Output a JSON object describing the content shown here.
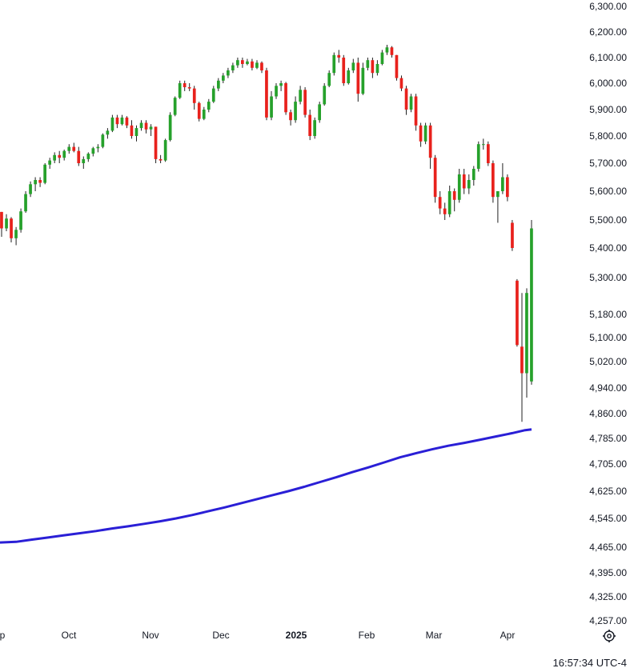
{
  "chart_data": {
    "type": "candlestick",
    "y_axis": {
      "ticks": [
        "6,300.00",
        "6,200.00",
        "6,100.00",
        "6,000.00",
        "5,900.00",
        "5,800.00",
        "5,700.00",
        "5,600.00",
        "5,500.00",
        "5,400.00",
        "5,300.00",
        "5,180.00",
        "5,100.00",
        "5,020.00",
        "4,940.00",
        "4,860.00",
        "4,785.00",
        "4,705.00",
        "4,625.00",
        "4,545.00",
        "4,465.00",
        "4,395.00",
        "4,325.00",
        "4,257.00"
      ],
      "ylim": [
        4257,
        6300
      ]
    },
    "x_axis": {
      "labels": [
        {
          "text": "p",
          "bold": false
        },
        {
          "text": "Oct",
          "bold": false
        },
        {
          "text": "Nov",
          "bold": false
        },
        {
          "text": "Dec",
          "bold": false
        },
        {
          "text": "2025",
          "bold": true
        },
        {
          "text": "Feb",
          "bold": false
        },
        {
          "text": "Mar",
          "bold": false
        },
        {
          "text": "Apr",
          "bold": false
        }
      ]
    },
    "colors": {
      "up": "#26a12b",
      "down": "#e8211c",
      "ma": "#2a1fd6",
      "wick": "#222222"
    },
    "candles": [
      [
        5528,
        5528,
        5440,
        5470
      ],
      [
        5470,
        5520,
        5460,
        5505
      ],
      [
        5505,
        5510,
        5420,
        5435
      ],
      [
        5435,
        5475,
        5410,
        5465
      ],
      [
        5465,
        5540,
        5455,
        5530
      ],
      [
        5530,
        5600,
        5525,
        5590
      ],
      [
        5590,
        5635,
        5580,
        5625
      ],
      [
        5625,
        5650,
        5600,
        5640
      ],
      [
        5640,
        5650,
        5615,
        5630
      ],
      [
        5630,
        5700,
        5625,
        5695
      ],
      [
        5695,
        5720,
        5680,
        5710
      ],
      [
        5710,
        5740,
        5700,
        5730
      ],
      [
        5730,
        5745,
        5700,
        5720
      ],
      [
        5720,
        5750,
        5710,
        5745
      ],
      [
        5745,
        5770,
        5735,
        5760
      ],
      [
        5760,
        5775,
        5740,
        5745
      ],
      [
        5745,
        5760,
        5690,
        5700
      ],
      [
        5700,
        5725,
        5680,
        5715
      ],
      [
        5715,
        5740,
        5705,
        5735
      ],
      [
        5735,
        5760,
        5725,
        5755
      ],
      [
        5755,
        5770,
        5740,
        5760
      ],
      [
        5760,
        5810,
        5755,
        5805
      ],
      [
        5805,
        5830,
        5790,
        5820
      ],
      [
        5820,
        5880,
        5815,
        5870
      ],
      [
        5870,
        5880,
        5830,
        5845
      ],
      [
        5845,
        5880,
        5840,
        5870
      ],
      [
        5870,
        5875,
        5830,
        5840
      ],
      [
        5840,
        5860,
        5790,
        5800
      ],
      [
        5800,
        5840,
        5780,
        5830
      ],
      [
        5830,
        5860,
        5820,
        5850
      ],
      [
        5850,
        5860,
        5810,
        5825
      ],
      [
        5825,
        5845,
        5800,
        5835
      ],
      [
        5835,
        5835,
        5700,
        5715
      ],
      [
        5715,
        5730,
        5700,
        5710
      ],
      [
        5710,
        5790,
        5705,
        5785
      ],
      [
        5785,
        5890,
        5780,
        5880
      ],
      [
        5880,
        5950,
        5875,
        5945
      ],
      [
        5945,
        6010,
        5940,
        6000
      ],
      [
        6000,
        6010,
        5970,
        5985
      ],
      [
        5985,
        6000,
        5970,
        5980
      ],
      [
        5980,
        5990,
        5900,
        5925
      ],
      [
        5925,
        5930,
        5855,
        5865
      ],
      [
        5865,
        5910,
        5860,
        5900
      ],
      [
        5900,
        5940,
        5890,
        5930
      ],
      [
        5930,
        5990,
        5925,
        5980
      ],
      [
        5980,
        6020,
        5970,
        6010
      ],
      [
        6010,
        6040,
        6000,
        6030
      ],
      [
        6030,
        6060,
        6020,
        6050
      ],
      [
        6050,
        6080,
        6040,
        6070
      ],
      [
        6070,
        6100,
        6060,
        6090
      ],
      [
        6090,
        6100,
        6060,
        6075
      ],
      [
        6075,
        6095,
        6070,
        6085
      ],
      [
        6085,
        6095,
        6050,
        6060
      ],
      [
        6060,
        6090,
        6055,
        6080
      ],
      [
        6080,
        6085,
        6040,
        6050
      ],
      [
        6050,
        6060,
        5860,
        5870
      ],
      [
        5870,
        5970,
        5860,
        5950
      ],
      [
        5950,
        6000,
        5940,
        5990
      ],
      [
        5990,
        6010,
        5970,
        6000
      ],
      [
        6000,
        6005,
        5880,
        5890
      ],
      [
        5890,
        5900,
        5840,
        5860
      ],
      [
        5860,
        5950,
        5850,
        5930
      ],
      [
        5930,
        5990,
        5920,
        5975
      ],
      [
        5975,
        5985,
        5870,
        5880
      ],
      [
        5880,
        5900,
        5785,
        5800
      ],
      [
        5800,
        5870,
        5790,
        5860
      ],
      [
        5860,
        5930,
        5850,
        5920
      ],
      [
        5920,
        6000,
        5915,
        5990
      ],
      [
        5990,
        6050,
        5985,
        6040
      ],
      [
        6040,
        6120,
        6030,
        6110
      ],
      [
        6110,
        6130,
        6080,
        6100
      ],
      [
        6100,
        6110,
        5990,
        6000
      ],
      [
        6000,
        6060,
        5995,
        6050
      ],
      [
        6050,
        6095,
        6040,
        6080
      ],
      [
        6080,
        6100,
        5930,
        5960
      ],
      [
        5960,
        6080,
        5955,
        6060
      ],
      [
        6060,
        6100,
        6050,
        6090
      ],
      [
        6090,
        6100,
        6020,
        6040
      ],
      [
        6040,
        6090,
        6030,
        6075
      ],
      [
        6075,
        6130,
        6070,
        6120
      ],
      [
        6120,
        6150,
        6110,
        6140
      ],
      [
        6140,
        6145,
        6100,
        6110
      ],
      [
        6110,
        6110,
        6010,
        6020
      ],
      [
        6020,
        6030,
        5970,
        5980
      ],
      [
        5980,
        5990,
        5880,
        5900
      ],
      [
        5900,
        5960,
        5890,
        5950
      ],
      [
        5950,
        5960,
        5820,
        5840
      ],
      [
        5840,
        5850,
        5760,
        5780
      ],
      [
        5780,
        5850,
        5770,
        5840
      ],
      [
        5840,
        5850,
        5680,
        5720
      ],
      [
        5720,
        5730,
        5560,
        5580
      ],
      [
        5580,
        5600,
        5520,
        5540
      ],
      [
        5540,
        5560,
        5500,
        5520
      ],
      [
        5520,
        5620,
        5510,
        5600
      ],
      [
        5600,
        5610,
        5530,
        5570
      ],
      [
        5570,
        5680,
        5560,
        5660
      ],
      [
        5660,
        5680,
        5590,
        5610
      ],
      [
        5610,
        5660,
        5590,
        5640
      ],
      [
        5640,
        5690,
        5620,
        5680
      ],
      [
        5680,
        5780,
        5670,
        5770
      ],
      [
        5770,
        5790,
        5750,
        5770
      ],
      [
        5770,
        5780,
        5690,
        5700
      ],
      [
        5700,
        5710,
        5560,
        5580
      ],
      [
        5580,
        5600,
        5490,
        5600
      ],
      [
        5600,
        5700,
        5590,
        5650
      ],
      [
        5650,
        5660,
        5565,
        5580
      ],
      [
        5490,
        5500,
        5390,
        5400
      ],
      [
        5290,
        5295,
        5070,
        5075
      ],
      [
        5070,
        5250,
        4835,
        4985
      ],
      [
        4985,
        5265,
        4910,
        5250
      ],
      [
        4960,
        5500,
        4950,
        5470
      ]
    ],
    "ma": [
      [
        0,
        4478
      ],
      [
        20,
        4480
      ],
      [
        40,
        4486
      ],
      [
        60,
        4492
      ],
      [
        80,
        4498
      ],
      [
        100,
        4504
      ],
      [
        120,
        4510
      ],
      [
        140,
        4517
      ],
      [
        160,
        4523
      ],
      [
        180,
        4530
      ],
      [
        200,
        4537
      ],
      [
        220,
        4545
      ],
      [
        240,
        4555
      ],
      [
        260,
        4566
      ],
      [
        280,
        4577
      ],
      [
        300,
        4589
      ],
      [
        320,
        4601
      ],
      [
        340,
        4613
      ],
      [
        360,
        4625
      ],
      [
        380,
        4638
      ],
      [
        400,
        4652
      ],
      [
        420,
        4666
      ],
      [
        440,
        4681
      ],
      [
        460,
        4695
      ],
      [
        480,
        4710
      ],
      [
        500,
        4726
      ],
      [
        520,
        4739
      ],
      [
        540,
        4751
      ],
      [
        560,
        4762
      ],
      [
        580,
        4771
      ],
      [
        600,
        4781
      ],
      [
        620,
        4791
      ],
      [
        640,
        4801
      ],
      [
        656,
        4810
      ],
      [
        664,
        4812
      ]
    ]
  },
  "status": {
    "clock": "16:57:34 UTC-4"
  },
  "icons": {
    "settings": "gear-icon"
  }
}
